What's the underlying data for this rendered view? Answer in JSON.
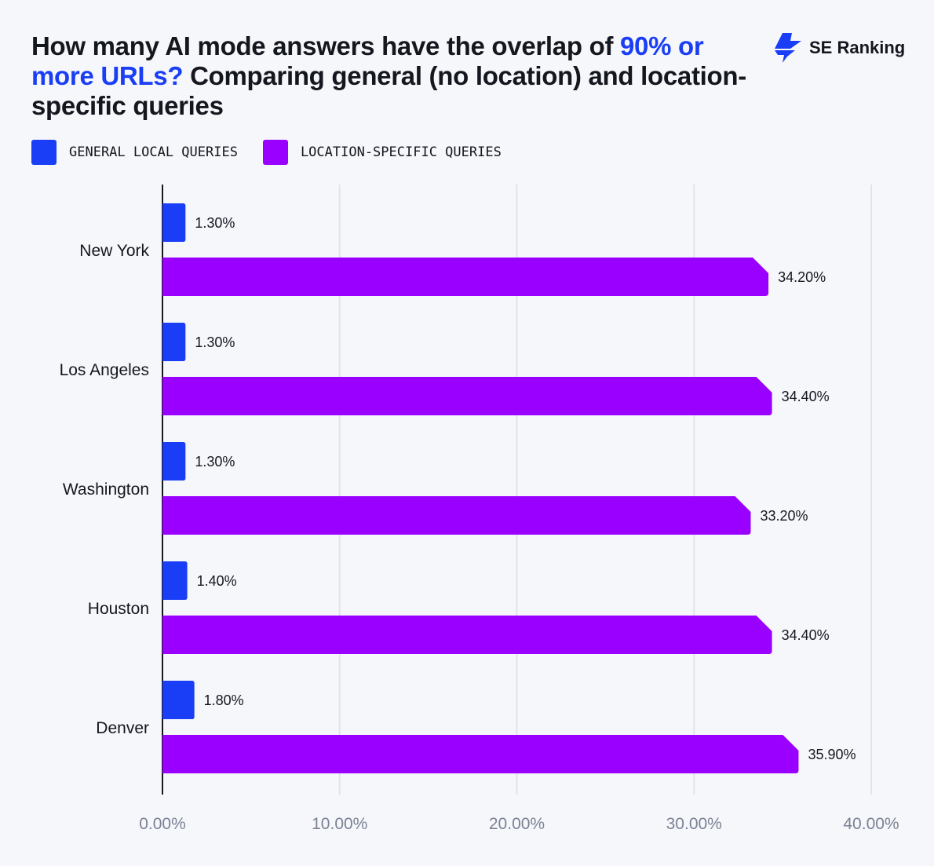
{
  "title_parts": {
    "a": "How many AI mode answers have the overlap of ",
    "b": "90% or more URLs?",
    "c": " Comparing general (no location) and location-specific queries"
  },
  "logo": {
    "text": "SE Ranking"
  },
  "colors": {
    "general": "#1a3ef5",
    "location": "#9900ff",
    "grid": "#e2e4ec",
    "axis": "#15171f",
    "tick": "#7b8294"
  },
  "chart_data": {
    "type": "bar",
    "orientation": "horizontal",
    "title": "How many AI mode answers have the overlap of 90% or more URLs? Comparing general (no location) and location-specific queries",
    "categories": [
      "New York",
      "Los Angeles",
      "Washington",
      "Houston",
      "Denver"
    ],
    "series": [
      {
        "name": "GENERAL LOCAL QUERIES",
        "values": [
          1.3,
          1.3,
          1.3,
          1.4,
          1.8
        ],
        "labels": [
          "1.30%",
          "1.30%",
          "1.30%",
          "1.40%",
          "1.80%"
        ]
      },
      {
        "name": "LOCATION-SPECIFIC QUERIES",
        "values": [
          34.2,
          34.4,
          33.2,
          34.4,
          35.9
        ],
        "labels": [
          "34.20%",
          "34.40%",
          "33.20%",
          "34.40%",
          "35.90%"
        ]
      }
    ],
    "xlim": [
      0,
      40
    ],
    "xticks": [
      0,
      10,
      20,
      30,
      40
    ],
    "xtick_labels": [
      "0.00%",
      "10.00%",
      "20.00%",
      "30.00%",
      "40.00%"
    ],
    "grid": true,
    "legend": "top-left"
  }
}
